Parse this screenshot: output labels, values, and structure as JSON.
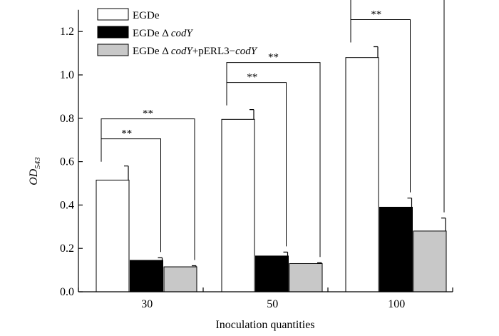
{
  "chart_data": {
    "type": "bar",
    "categories": [
      "30",
      "50",
      "100"
    ],
    "xlabel": "Inoculation quantities",
    "ylabel_main": "OD",
    "ylabel_sub": "543",
    "ylim": [
      0,
      1.3
    ],
    "yticks": [
      "0.0",
      "0.2",
      "0.4",
      "0.6",
      "0.8",
      "1.0",
      "1.2"
    ],
    "ytick_values": [
      0,
      0.2,
      0.4,
      0.6,
      0.8,
      1.0,
      1.2
    ],
    "grid": false,
    "legend_position": "top-left",
    "series": [
      {
        "name_plain": "EGDe",
        "name_italic": "",
        "name_tail": "",
        "name_italic2": "",
        "fill": "#ffffff",
        "values": [
          0.515,
          0.795,
          1.08
        ],
        "errors": [
          0.065,
          0.045,
          0.05
        ]
      },
      {
        "name_plain": "EGDe Δ ",
        "name_italic": "codY",
        "name_tail": "",
        "name_italic2": "",
        "fill": "#000000",
        "values": [
          0.145,
          0.165,
          0.39
        ],
        "errors": [
          0.012,
          0.018,
          0.042
        ]
      },
      {
        "name_plain": "EGDe Δ ",
        "name_italic": "codY",
        "name_tail": "+pERL3−",
        "name_italic2": "codY",
        "fill": "#c8c8c8",
        "values": [
          0.115,
          0.13,
          0.28
        ],
        "errors": [
          0.005,
          0.004,
          0.06
        ]
      }
    ],
    "significance": [
      {
        "category": 0,
        "from": 0,
        "to": 1,
        "label": "**"
      },
      {
        "category": 0,
        "from": 0,
        "to": 2,
        "label": "**"
      },
      {
        "category": 1,
        "from": 0,
        "to": 1,
        "label": "**"
      },
      {
        "category": 1,
        "from": 0,
        "to": 2,
        "label": "**"
      },
      {
        "category": 2,
        "from": 0,
        "to": 1,
        "label": "**"
      },
      {
        "category": 2,
        "from": 0,
        "to": 2,
        "label": "**"
      }
    ]
  }
}
